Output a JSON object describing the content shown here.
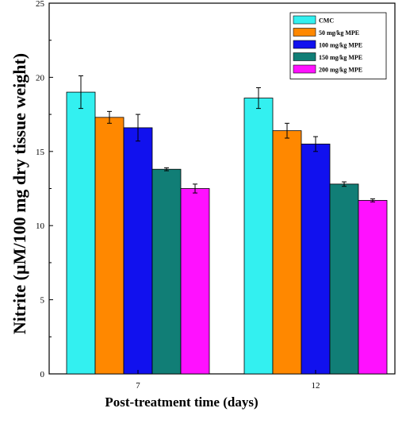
{
  "chart_data": {
    "type": "bar",
    "title": "",
    "xlabel": "Post-treatment time (days)",
    "ylabel": "Nitrite (µM/100 mg dry tissue weight)",
    "ylim": [
      0,
      25
    ],
    "yticks": [
      "0",
      "5",
      "10",
      "15",
      "20",
      "25"
    ],
    "categories": [
      "7",
      "12"
    ],
    "legend_position": "top-right",
    "grid": false,
    "series": [
      {
        "name": "CMC",
        "color": "#33f0f0",
        "values": [
          19.0,
          18.6
        ],
        "errors": [
          1.1,
          0.7
        ]
      },
      {
        "name": "50 mg/kg MPE",
        "color": "#ff8800",
        "values": [
          17.3,
          16.4
        ],
        "errors": [
          0.4,
          0.5
        ]
      },
      {
        "name": "100 mg/kg MPE",
        "color": "#1111ee",
        "values": [
          16.6,
          15.5
        ],
        "errors": [
          0.9,
          0.5
        ]
      },
      {
        "name": "150 mg/kg MPE",
        "color": "#117e76",
        "values": [
          13.8,
          12.8
        ],
        "errors": [
          0.1,
          0.15
        ]
      },
      {
        "name": "200 mg/kg MPE",
        "color": "#ff11ff",
        "values": [
          12.5,
          11.7
        ],
        "errors": [
          0.3,
          0.1
        ]
      }
    ]
  }
}
